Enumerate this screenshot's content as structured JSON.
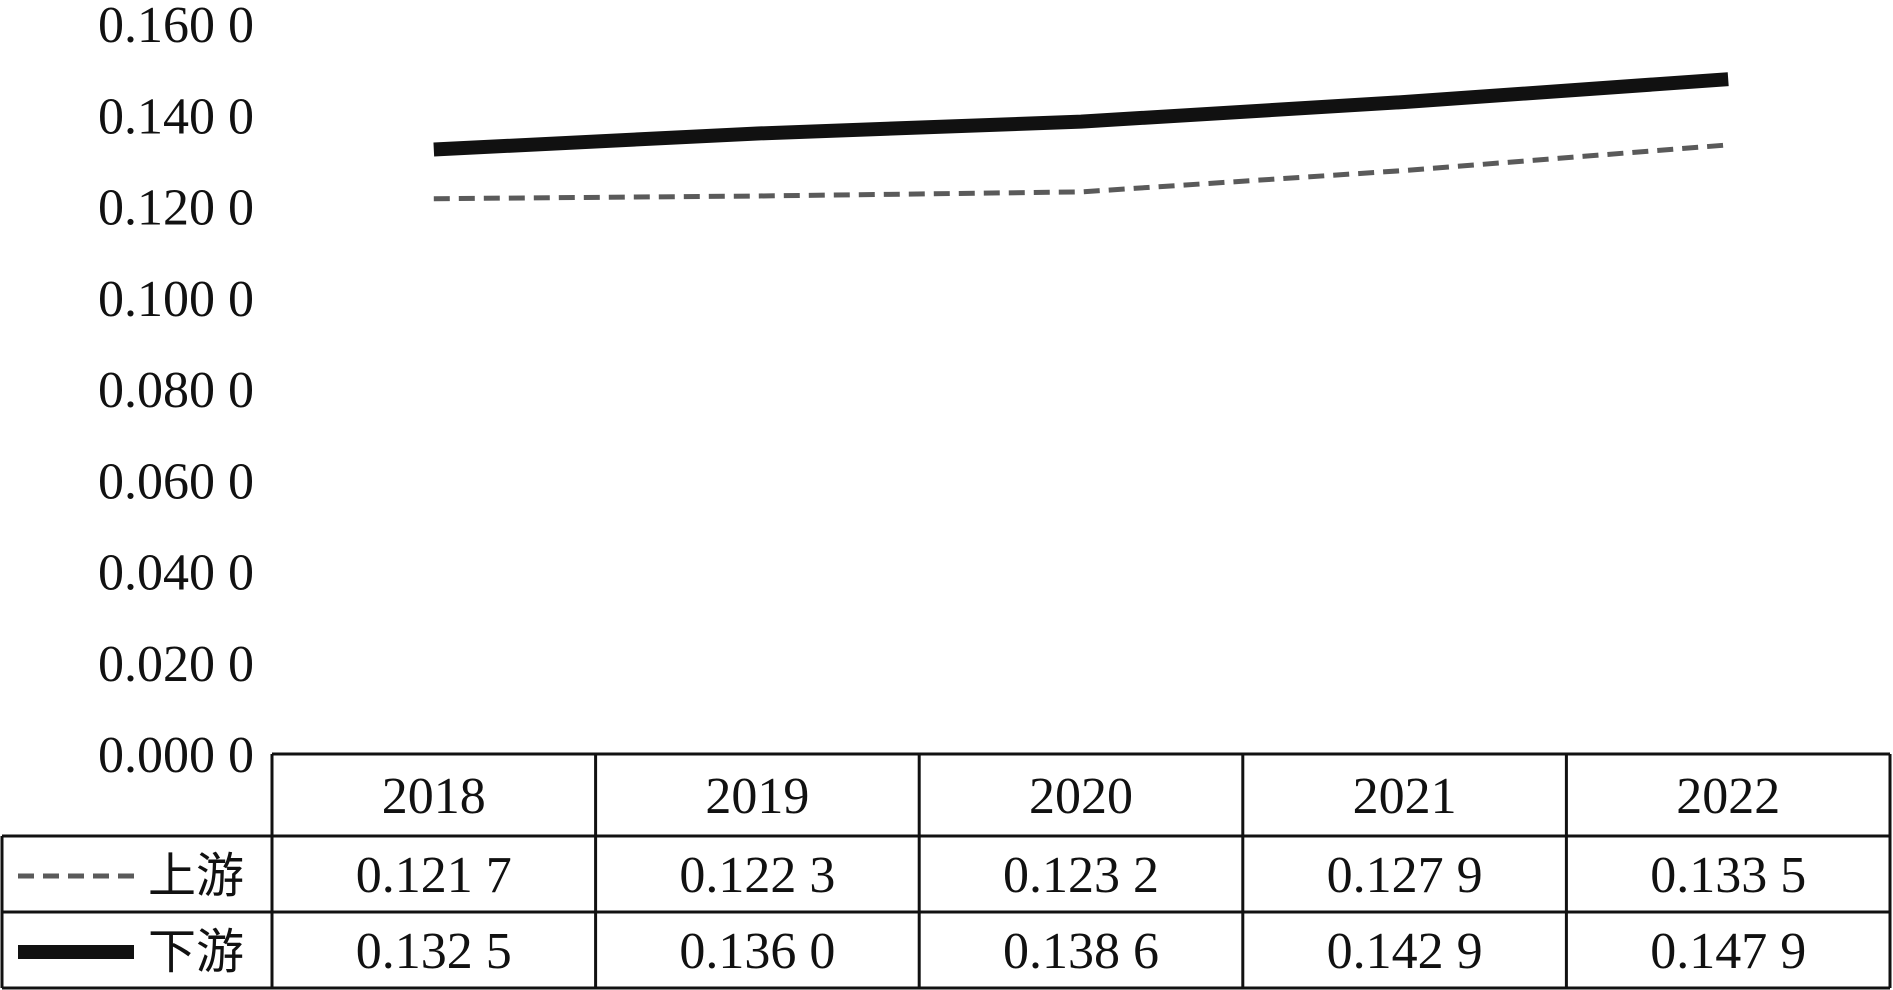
{
  "chart_data": {
    "type": "line",
    "title": "",
    "xlabel": "",
    "ylabel": "",
    "categories": [
      "2018",
      "2019",
      "2020",
      "2021",
      "2022"
    ],
    "ylim": [
      0.0,
      0.16
    ],
    "yticks": [
      "0.000 0",
      "0.020 0",
      "0.040 0",
      "0.060 0",
      "0.080 0",
      "0.100 0",
      "0.120 0",
      "0.140 0",
      "0.160 0"
    ],
    "legend_placement": "data-table-left",
    "grid": false,
    "series": [
      {
        "name": "上游",
        "values": [
          0.1217,
          0.1223,
          0.1232,
          0.1279,
          0.1335
        ],
        "labels": [
          "0.121 7",
          "0.122 3",
          "0.123 2",
          "0.127 9",
          "0.133 5"
        ],
        "style": "dashed",
        "color": "#5a5a5a"
      },
      {
        "name": "下游",
        "values": [
          0.1325,
          0.136,
          0.1386,
          0.1429,
          0.1479
        ],
        "labels": [
          "0.132 5",
          "0.136 0",
          "0.138 6",
          "0.142 9",
          "0.147 9"
        ],
        "style": "solid",
        "color": "#111111"
      }
    ]
  }
}
